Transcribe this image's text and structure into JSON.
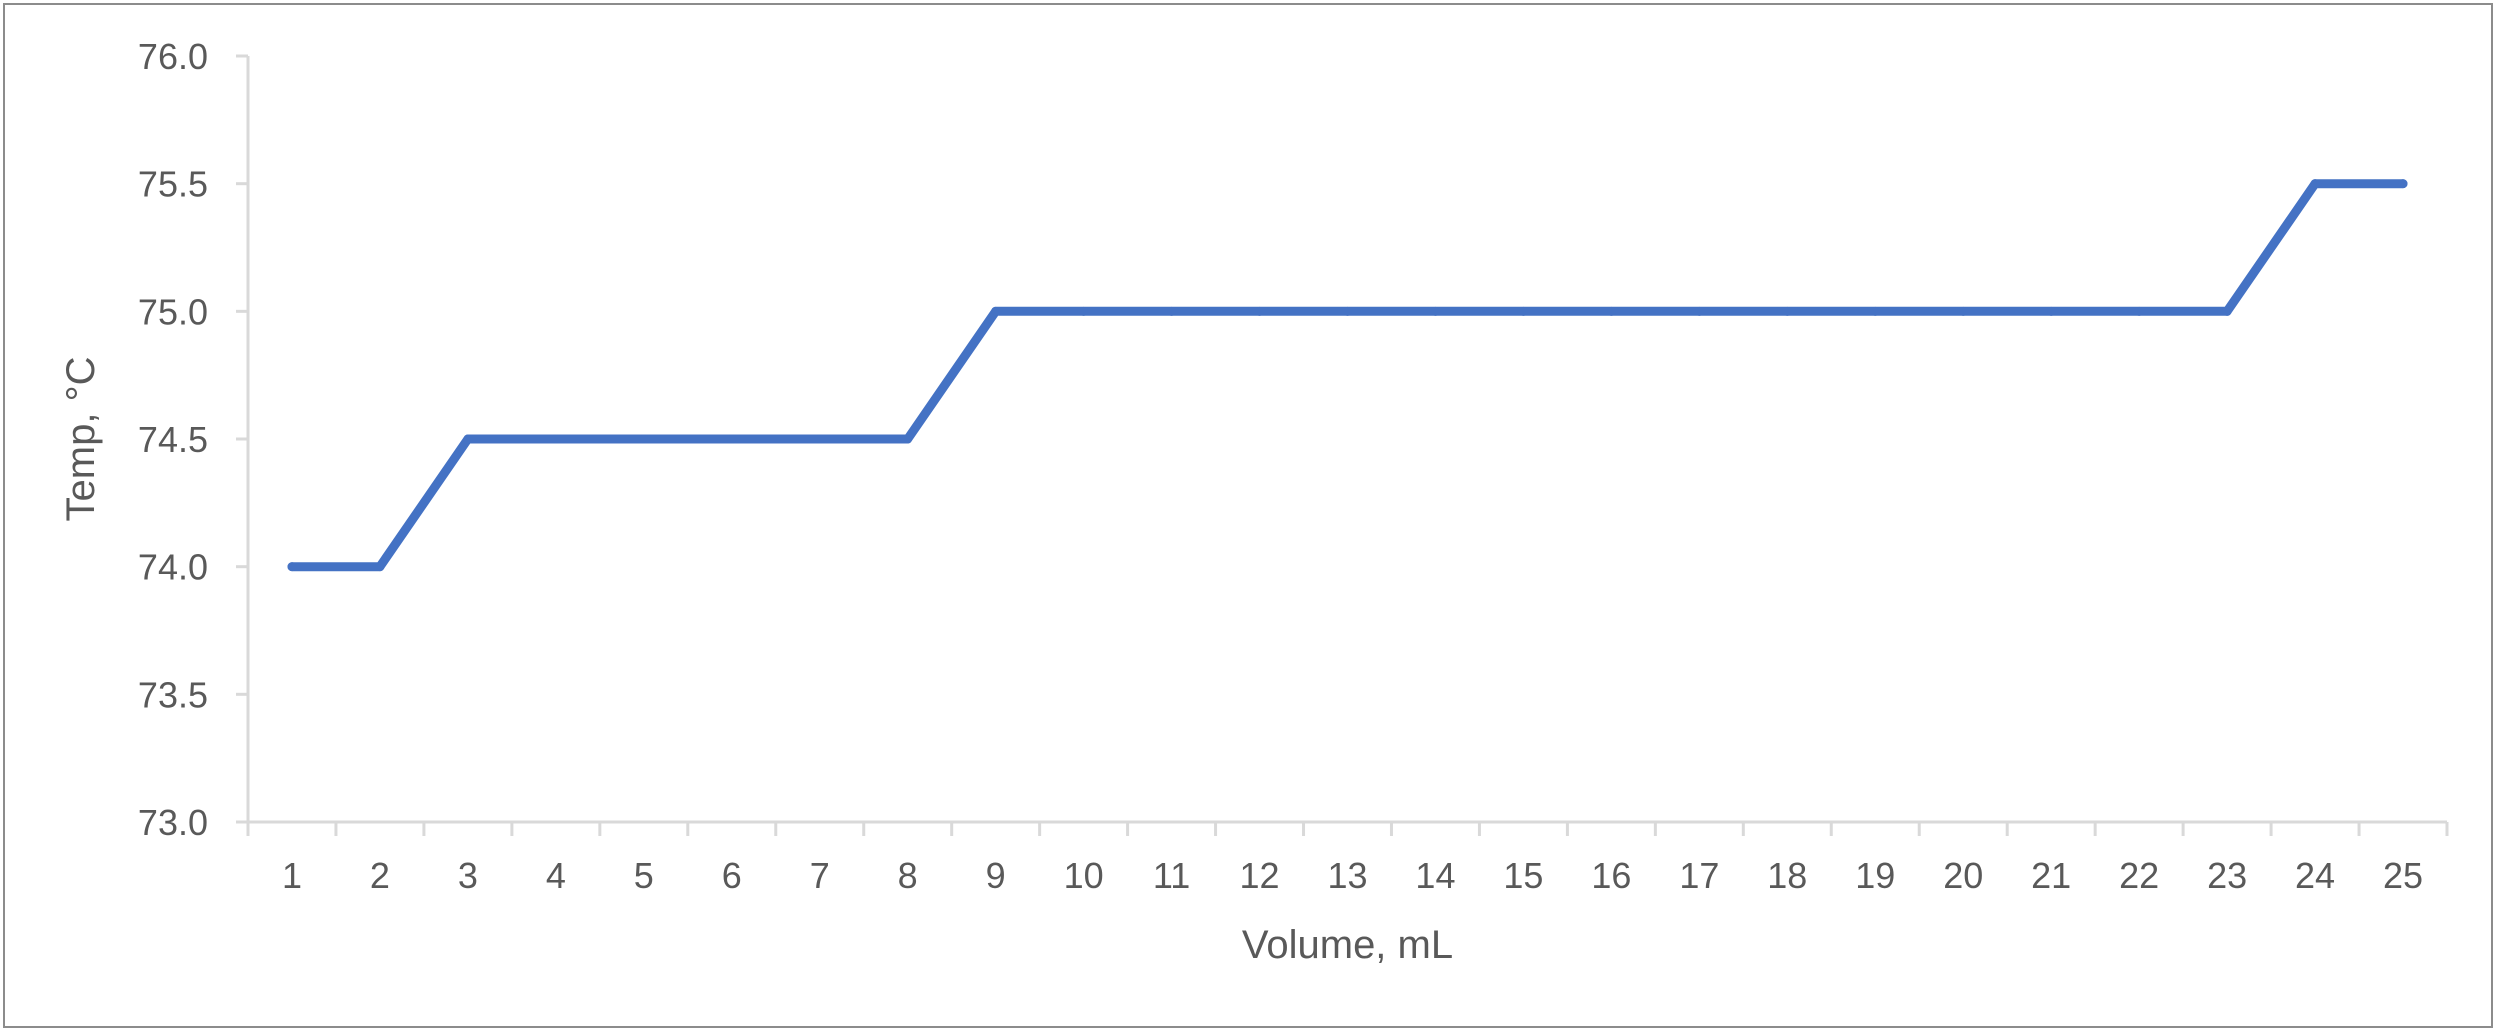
{
  "chart_data": {
    "type": "line",
    "title": "",
    "xlabel": "Volume, mL",
    "ylabel": "Temp, °C",
    "categories": [
      "1",
      "2",
      "3",
      "4",
      "5",
      "6",
      "7",
      "8",
      "9",
      "10",
      "11",
      "12",
      "13",
      "14",
      "15",
      "16",
      "17",
      "18",
      "19",
      "20",
      "21",
      "22",
      "23",
      "24",
      "25"
    ],
    "series": [
      {
        "values": [
          74.0,
          74.0,
          74.5,
          74.5,
          74.5,
          74.5,
          74.5,
          74.5,
          75.0,
          75.0,
          75.0,
          75.0,
          75.0,
          75.0,
          75.0,
          75.0,
          75.0,
          75.0,
          75.0,
          75.0,
          75.0,
          75.0,
          75.0,
          75.5,
          75.5
        ],
        "color": "#4472C4"
      }
    ],
    "ylim": [
      73.0,
      76.0
    ],
    "yticks": [
      "73.0",
      "73.5",
      "74.0",
      "74.5",
      "75.0",
      "75.5",
      "76.0"
    ],
    "grid": false,
    "legend": "none"
  }
}
